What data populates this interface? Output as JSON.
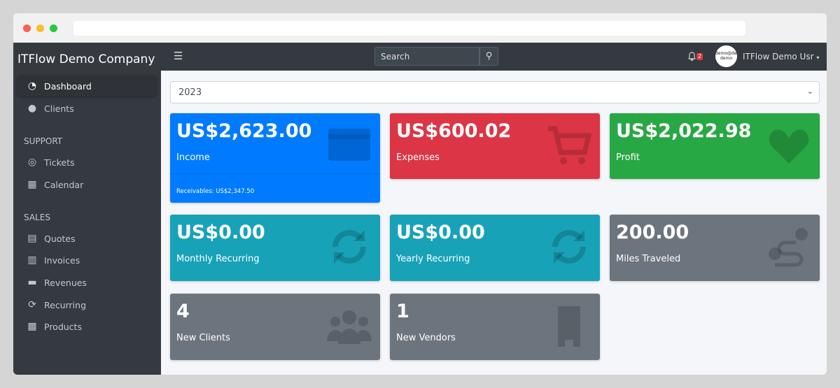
{
  "sidebar": {
    "brand": "ITFlow Demo Company",
    "items": [
      {
        "label": "Dashboard",
        "icon": "tachometer-icon"
      },
      {
        "label": "Clients",
        "icon": "users-icon"
      }
    ],
    "support_header": "SUPPORT",
    "support": [
      {
        "label": "Tickets",
        "icon": "life-ring-icon"
      },
      {
        "label": "Calendar",
        "icon": "calendar-icon"
      }
    ],
    "sales_header": "SALES",
    "sales": [
      {
        "label": "Quotes",
        "icon": "file-icon"
      },
      {
        "label": "Invoices",
        "icon": "invoice-icon"
      },
      {
        "label": "Revenues",
        "icon": "credit-card-icon"
      },
      {
        "label": "Recurring",
        "icon": "sync-icon"
      },
      {
        "label": "Products",
        "icon": "box-icon"
      }
    ]
  },
  "topbar": {
    "search_placeholder": "Search",
    "notifications": "2",
    "avatar_text": "demo@demo demo",
    "user": "ITFlow Demo Usr"
  },
  "main": {
    "year": "2023",
    "cards": [
      {
        "value": "US$2,623.00",
        "label": "Income",
        "footer": "Receivables: US$2,347.50",
        "color": "#007bff",
        "icon": "credit-card-icon"
      },
      {
        "value": "US$600.02",
        "label": "Expenses",
        "color": "#dc3545",
        "icon": "cart-icon"
      },
      {
        "value": "US$2,022.98",
        "label": "Profit",
        "color": "#28a745",
        "icon": "heart-icon"
      },
      {
        "value": "US$0.00",
        "label": "Monthly Recurring",
        "color": "#17a2b8",
        "icon": "sync-icon"
      },
      {
        "value": "US$0.00",
        "label": "Yearly Recurring",
        "color": "#17a2b8",
        "icon": "sync-icon"
      },
      {
        "value": "200.00",
        "label": "Miles Traveled",
        "color": "#6c757d",
        "icon": "route-icon"
      },
      {
        "value": "4",
        "label": "New Clients",
        "color": "#6c757d",
        "icon": "users-icon"
      },
      {
        "value": "1",
        "label": "New Vendors",
        "color": "#6c757d",
        "icon": "building-icon"
      }
    ]
  }
}
